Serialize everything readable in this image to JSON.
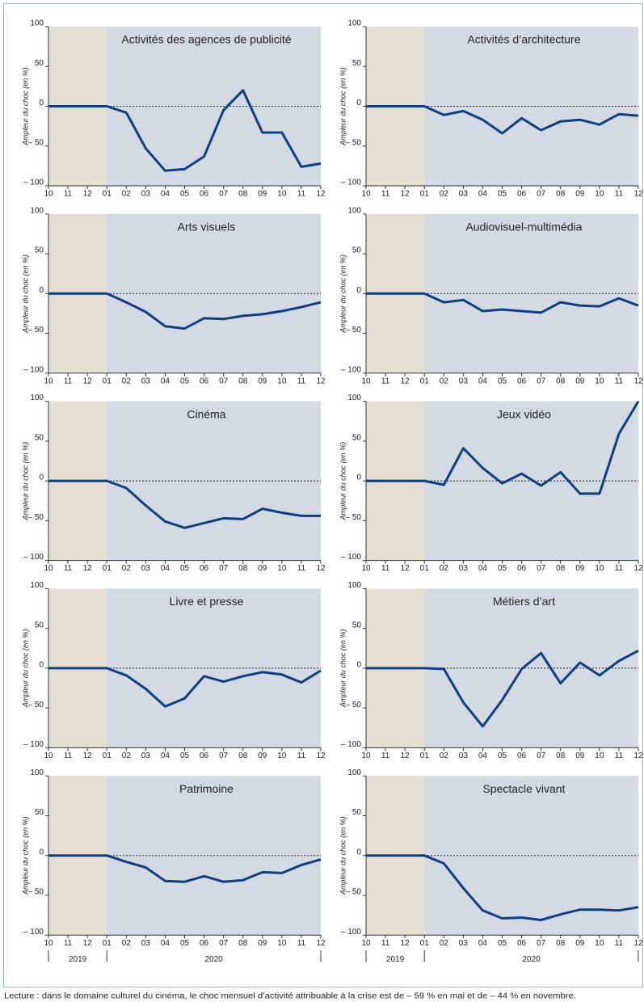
{
  "chart_data": [
    {
      "type": "line",
      "title": "Activités des agences de publicité",
      "y_label": "Ampleur du choc (en %)",
      "categories": [
        "10",
        "11",
        "12",
        "01",
        "02",
        "03",
        "04",
        "05",
        "06",
        "07",
        "08",
        "09",
        "10",
        "11",
        "12"
      ],
      "values": [
        0,
        0,
        0,
        0,
        -8,
        -53,
        -81,
        -79,
        -63,
        -5,
        20,
        -33,
        -33,
        -76,
        -72
      ],
      "color": "#0e3f80",
      "background_colors": [
        "#e5dfd3",
        "#d3dae3"
      ],
      "ylim": [
        -100,
        100
      ],
      "yticks": [
        {
          "value": -100,
          "label": "– 100"
        },
        {
          "value": -50,
          "label": "– 50"
        },
        0,
        50,
        100
      ]
    },
    {
      "type": "line",
      "title": "Activités d’architecture",
      "y_label": "Ampleur du choc (en %)",
      "categories": [
        "10",
        "11",
        "12",
        "01",
        "02",
        "03",
        "04",
        "05",
        "06",
        "07",
        "08",
        "09",
        "10",
        "11",
        "12"
      ],
      "values": [
        0,
        0,
        0,
        0,
        -11,
        -6,
        -17,
        -34,
        -15,
        -30,
        -19,
        -17,
        -23,
        -10,
        -12
      ],
      "color": "#0e3f80",
      "background_colors": [
        "#e5dfd3",
        "#d3dae3"
      ],
      "ylim": [
        -100,
        100
      ],
      "yticks": [
        {
          "value": -100,
          "label": "– 100"
        },
        {
          "value": -50,
          "label": "– 50"
        },
        0,
        50,
        100
      ]
    },
    {
      "type": "line",
      "title": "Arts visuels",
      "y_label": "Ampleur du choc (en %)",
      "categories": [
        "10",
        "11",
        "12",
        "01",
        "02",
        "03",
        "04",
        "05",
        "06",
        "07",
        "08",
        "09",
        "10",
        "11",
        "12"
      ],
      "values": [
        0,
        0,
        0,
        0,
        -11,
        -23,
        -41,
        -44,
        -31,
        -32,
        -28,
        -26,
        -22,
        -17,
        -11
      ],
      "color": "#0e3f80",
      "background_colors": [
        "#e5dfd3",
        "#d3dae3"
      ],
      "ylim": [
        -100,
        100
      ],
      "yticks": [
        {
          "value": -100,
          "label": "– 100"
        },
        {
          "value": -50,
          "label": "– 50"
        },
        0,
        50,
        100
      ]
    },
    {
      "type": "line",
      "title": "Audiovisuel-multimédia",
      "y_label": "Ampleur du choc (en %)",
      "categories": [
        "10",
        "11",
        "12",
        "01",
        "02",
        "03",
        "04",
        "05",
        "06",
        "07",
        "08",
        "09",
        "10",
        "11",
        "12"
      ],
      "values": [
        0,
        0,
        0,
        0,
        -11,
        -8,
        -22,
        -20,
        -22,
        -24,
        -11,
        -15,
        -16,
        -6,
        -15
      ],
      "color": "#0e3f80",
      "background_colors": [
        "#e5dfd3",
        "#d3dae3"
      ],
      "ylim": [
        -100,
        100
      ],
      "yticks": [
        {
          "value": -100,
          "label": "– 100"
        },
        {
          "value": -50,
          "label": "– 50"
        },
        0,
        50,
        100
      ]
    },
    {
      "type": "line",
      "title": "Cinéma",
      "y_label": "Ampleur du choc (en %)",
      "categories": [
        "10",
        "11",
        "12",
        "01",
        "02",
        "03",
        "04",
        "05",
        "06",
        "07",
        "08",
        "09",
        "10",
        "11",
        "12"
      ],
      "values": [
        0,
        0,
        0,
        0,
        -9,
        -31,
        -51,
        -59,
        -53,
        -47,
        -48,
        -35,
        -40,
        -44,
        -44
      ],
      "color": "#0e3f80",
      "background_colors": [
        "#e5dfd3",
        "#d3dae3"
      ],
      "ylim": [
        -100,
        100
      ],
      "yticks": [
        {
          "value": -100,
          "label": "– 100"
        },
        {
          "value": -50,
          "label": "– 50"
        },
        0,
        50,
        100
      ]
    },
    {
      "type": "line",
      "title": "Jeux vidéo",
      "y_label": "Ampleur du choc (en %)",
      "categories": [
        "10",
        "11",
        "12",
        "01",
        "02",
        "03",
        "04",
        "05",
        "06",
        "07",
        "08",
        "09",
        "10",
        "11",
        "12"
      ],
      "values": [
        0,
        0,
        0,
        0,
        -5,
        41,
        16,
        -3,
        9,
        -6,
        11,
        -16,
        -16,
        59,
        100
      ],
      "color": "#0e3f80",
      "background_colors": [
        "#e5dfd3",
        "#d3dae3"
      ],
      "ylim": [
        -100,
        100
      ],
      "yticks": [
        {
          "value": -100,
          "label": "– 100"
        },
        {
          "value": -50,
          "label": "– 50"
        },
        0,
        50,
        100
      ]
    },
    {
      "type": "line",
      "title": "Livre et presse",
      "y_label": "Ampleur du choc (en %)",
      "categories": [
        "10",
        "11",
        "12",
        "01",
        "02",
        "03",
        "04",
        "05",
        "06",
        "07",
        "08",
        "09",
        "10",
        "11",
        "12"
      ],
      "values": [
        0,
        0,
        0,
        0,
        -9,
        -26,
        -48,
        -38,
        -10,
        -17,
        -10,
        -5,
        -8,
        -18,
        -3
      ],
      "color": "#0e3f80",
      "background_colors": [
        "#e5dfd3",
        "#d3dae3"
      ],
      "ylim": [
        -100,
        100
      ],
      "yticks": [
        {
          "value": -100,
          "label": "– 100"
        },
        {
          "value": -50,
          "label": "– 50"
        },
        0,
        50,
        100
      ]
    },
    {
      "type": "line",
      "title": "Métiers d’art",
      "y_label": "Ampleur du choc (en %)",
      "categories": [
        "10",
        "11",
        "12",
        "01",
        "02",
        "03",
        "04",
        "05",
        "06",
        "07",
        "08",
        "09",
        "10",
        "11",
        "12"
      ],
      "values": [
        0,
        0,
        0,
        0,
        -1,
        -43,
        -73,
        -40,
        -1,
        19,
        -19,
        7,
        -9,
        9,
        22
      ],
      "color": "#0e3f80",
      "background_colors": [
        "#e5dfd3",
        "#d3dae3"
      ],
      "ylim": [
        -100,
        100
      ],
      "yticks": [
        {
          "value": -100,
          "label": "– 100"
        },
        {
          "value": -50,
          "label": "– 50"
        },
        0,
        50,
        100
      ]
    },
    {
      "type": "line",
      "title": "Patrimoine",
      "y_label": "Ampleur du choc (en %)",
      "categories": [
        "10",
        "11",
        "12",
        "01",
        "02",
        "03",
        "04",
        "05",
        "06",
        "07",
        "08",
        "09",
        "10",
        "11",
        "12"
      ],
      "values": [
        0,
        0,
        0,
        0,
        -8,
        -15,
        -32,
        -33,
        -26,
        -33,
        -31,
        -21,
        -22,
        -12,
        -5
      ],
      "color": "#0e3f80",
      "background_colors": [
        "#e5dfd3",
        "#d3dae3"
      ],
      "ylim": [
        -100,
        100
      ],
      "yticks": [
        {
          "value": -100,
          "label": "– 100"
        },
        {
          "value": -50,
          "label": "– 50"
        },
        0,
        50,
        100
      ],
      "year_labels": [
        "2019",
        "2020"
      ]
    },
    {
      "type": "line",
      "title": "Spectacle vivant",
      "y_label": "Ampleur du choc (en %)",
      "categories": [
        "10",
        "11",
        "12",
        "01",
        "02",
        "03",
        "04",
        "05",
        "06",
        "07",
        "08",
        "09",
        "10",
        "11",
        "12"
      ],
      "values": [
        0,
        0,
        0,
        0,
        -10,
        -41,
        -69,
        -79,
        -78,
        -81,
        -74,
        -68,
        -68,
        -69,
        -65
      ],
      "color": "#0e3f80",
      "background_colors": [
        "#e5dfd3",
        "#d3dae3"
      ],
      "ylim": [
        -100,
        100
      ],
      "yticks": [
        {
          "value": -100,
          "label": "– 100"
        },
        {
          "value": -50,
          "label": "– 50"
        },
        0,
        50,
        100
      ],
      "year_labels": [
        "2019",
        "2020"
      ]
    }
  ],
  "note": "Lecture : dans le domaine culturel du cinéma, le choc mensuel d’activité attribuable à la crise est de – 59 % en mai et de – 44 % en novembre."
}
